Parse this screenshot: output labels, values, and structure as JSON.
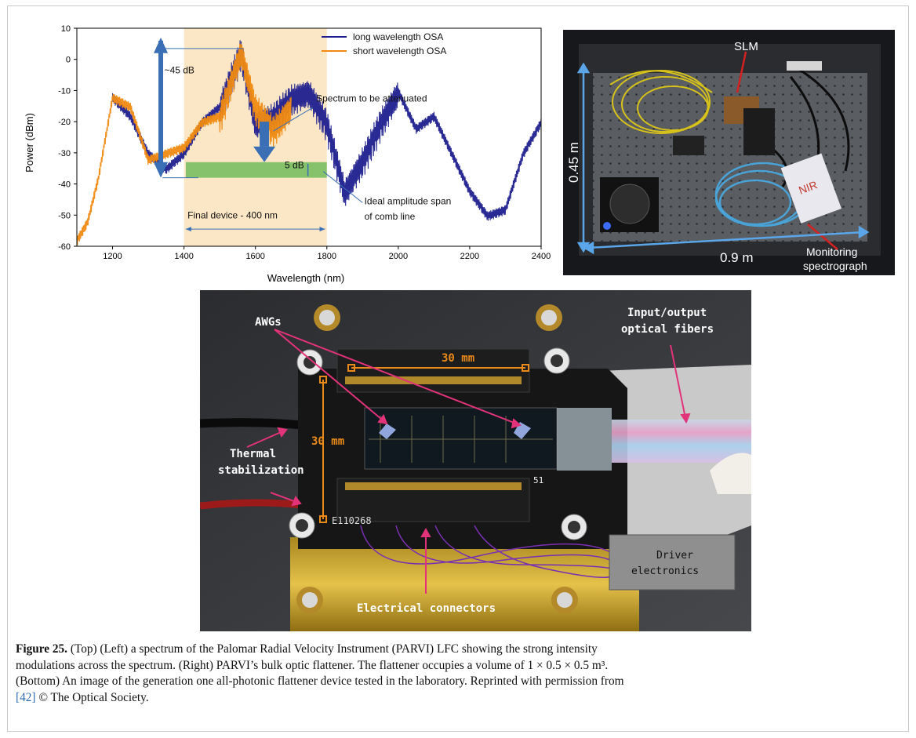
{
  "chart_data": {
    "type": "line",
    "xlabel": "Wavelength (nm)",
    "ylabel": "Power (dBm)",
    "xlim": [
      1100,
      2400
    ],
    "ylim": [
      -60,
      10
    ],
    "xticks": [
      1200,
      1400,
      1600,
      1800,
      2000,
      2200,
      2400
    ],
    "yticks": [
      10,
      0,
      -10,
      -20,
      -30,
      -40,
      -50,
      -60
    ],
    "legend_position": "top-center",
    "series": [
      {
        "name": "long wavelength OSA",
        "color": "#1f1f8f",
        "x": [
          1200,
          1250,
          1300,
          1350,
          1400,
          1450,
          1500,
          1560,
          1600,
          1650,
          1700,
          1750,
          1800,
          1850,
          1900,
          1950,
          2000,
          2050,
          2100,
          2150,
          2200,
          2250,
          2300,
          2350,
          2400
        ],
        "y": [
          -12,
          -18,
          -30,
          -35,
          -30,
          -20,
          -15,
          3,
          -20,
          -18,
          -12,
          -10,
          -20,
          -42,
          -32,
          -20,
          -10,
          -22,
          -18,
          -30,
          -42,
          -50,
          -48,
          -30,
          -20
        ]
      },
      {
        "name": "short wavelength OSA",
        "color": "#f08a12",
        "x": [
          1100,
          1130,
          1160,
          1200,
          1250,
          1300,
          1350,
          1400,
          1450,
          1500,
          1560,
          1600,
          1650,
          1700
        ],
        "y": [
          -58,
          -52,
          -38,
          -12,
          -15,
          -32,
          -30,
          -28,
          -20,
          -18,
          3,
          -15,
          -22,
          -15
        ]
      }
    ],
    "annotations": [
      "~45 dB",
      "Spectrum to be attenuated",
      "5 dB",
      "Ideal amplitude span",
      "of comb line",
      "Final device - 400 nm"
    ],
    "highlight_band_nm": [
      1400,
      1800
    ],
    "highlight_color": "#fbe7c6",
    "target_band_color": "#86c26b",
    "arrow_color": "#3a6fb5"
  },
  "photo_top": {
    "labels": {
      "slm": "SLM",
      "height": "0.45 m",
      "width": "0.9 m",
      "monitor_1": "Monitoring",
      "monitor_2": "spectrograph"
    }
  },
  "photo_bottom": {
    "labels": {
      "awgs": "AWGs",
      "fibers_1": "Input/output",
      "fibers_2": "optical fibers",
      "thermal_1": "Thermal",
      "thermal_2": "stabilization",
      "size_h": "30 mm",
      "size_v": "30 mm",
      "driver_1": "Driver",
      "driver_2": "electronics",
      "electrical": "Electrical connectors",
      "chip_id": "E110268",
      "pin_a": "51"
    }
  },
  "caption": {
    "figure_label": "Figure 25.",
    "line1": " (Top) (Left) a spectrum of the Palomar Radial Velocity Instrument (PARVI) LFC showing the strong intensity",
    "line2": "modulations across the spectrum. (Right) PARVI’s bulk optic flattener. The flattener occupies a volume of 1 × 0.5 × 0.5 m³.",
    "line3": "(Bottom) An image of the generation one all-photonic flattener device tested in the laboratory. Reprinted with permission from",
    "ref": "[42]",
    "line4_rest": " © The Optical Society."
  }
}
